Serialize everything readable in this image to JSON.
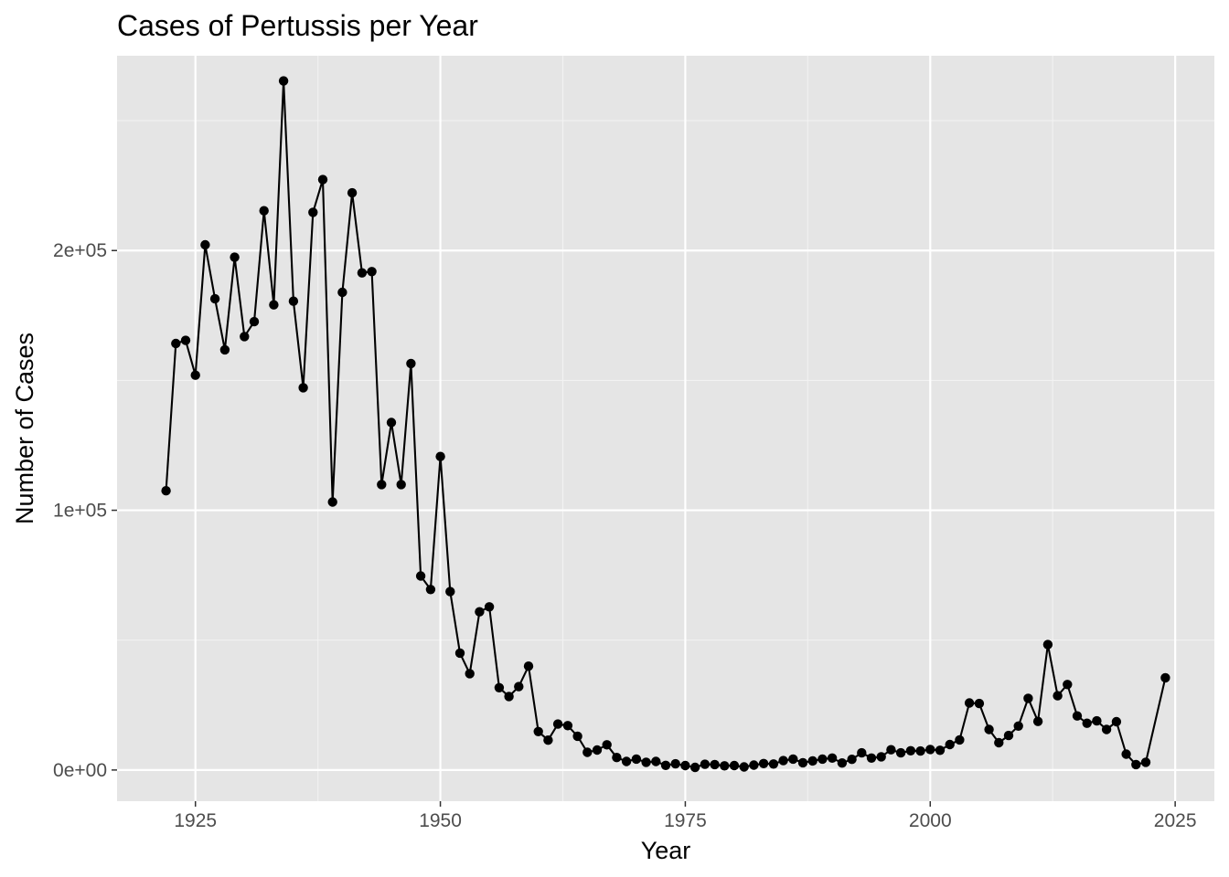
{
  "chart_data": {
    "type": "line",
    "title": "Cases of Pertussis per Year",
    "xlabel": "Year",
    "ylabel": "Number of Cases",
    "xlim": [
      1917,
      2029
    ],
    "ylim": [
      -12000,
      275000
    ],
    "x_ticks": [
      1925,
      1950,
      1975,
      2000,
      2025
    ],
    "x_tick_labels": [
      "1925",
      "1950",
      "1975",
      "2000",
      "2025"
    ],
    "y_ticks": [
      0,
      100000,
      200000
    ],
    "y_tick_labels": [
      "0e+00",
      "1e+05",
      "2e+05"
    ],
    "grid": true,
    "markers": true,
    "legend": "none",
    "colors": {
      "panel_background": "#e5e5e5",
      "grid_major": "#ffffff",
      "grid_minor": "#f2f2f2",
      "series": "#000000",
      "tick_label": "#4d4d4d"
    },
    "series": [
      {
        "x": [
          1922,
          1923,
          1924,
          1925,
          1926,
          1927,
          1928,
          1929,
          1930,
          1931,
          1932,
          1933,
          1934,
          1935,
          1936,
          1937,
          1938,
          1939,
          1940,
          1941,
          1942,
          1943,
          1944,
          1945,
          1946,
          1947,
          1948,
          1949,
          1950,
          1951,
          1952,
          1953,
          1954,
          1955,
          1956,
          1957,
          1958,
          1959,
          1960,
          1961,
          1962,
          1963,
          1964,
          1965,
          1966,
          1967,
          1968,
          1969,
          1970,
          1971,
          1972,
          1973,
          1974,
          1975,
          1976,
          1977,
          1978,
          1979,
          1980,
          1981,
          1982,
          1983,
          1984,
          1985,
          1986,
          1987,
          1988,
          1989,
          1990,
          1991,
          1992,
          1993,
          1994,
          1995,
          1996,
          1997,
          1998,
          1999,
          2000,
          2001,
          2002,
          2003,
          2004,
          2005,
          2006,
          2007,
          2008,
          2009,
          2010,
          2011,
          2012,
          2013,
          2014,
          2015,
          2016,
          2017,
          2018,
          2019,
          2020,
          2021,
          2022,
          2024
        ],
        "y": [
          107500,
          164200,
          165400,
          152000,
          202200,
          181400,
          161800,
          197400,
          166900,
          172600,
          215300,
          179100,
          265300,
          180500,
          147200,
          214700,
          227300,
          103200,
          183900,
          222200,
          191400,
          191900,
          109900,
          133800,
          109900,
          156500,
          74700,
          69500,
          120700,
          68700,
          45000,
          37100,
          60900,
          62800,
          31700,
          28300,
          32100,
          40000,
          14800,
          11500,
          17700,
          17100,
          13000,
          6800,
          7700,
          9700,
          4800,
          3300,
          4200,
          3000,
          3300,
          1800,
          2400,
          1700,
          1000,
          2200,
          2100,
          1600,
          1700,
          1200,
          1900,
          2500,
          2300,
          3600,
          4200,
          2800,
          3500,
          4200,
          4600,
          2700,
          4100,
          6600,
          4600,
          5100,
          7800,
          6600,
          7400,
          7300,
          7900,
          7600,
          9800,
          11600,
          25800,
          25600,
          15600,
          10500,
          13300,
          16900,
          27600,
          18700,
          48300,
          28600,
          32900,
          20800,
          18000,
          18900,
          15600,
          18600,
          6100,
          2100,
          3000,
          35500
        ]
      }
    ]
  }
}
